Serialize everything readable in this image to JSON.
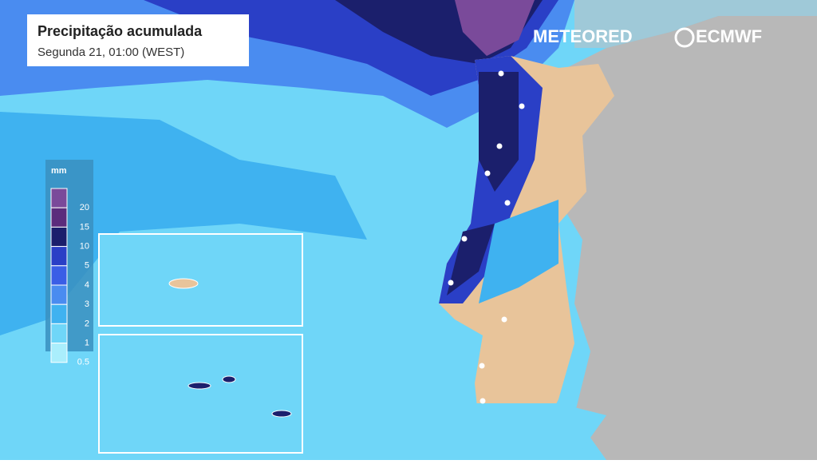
{
  "header": {
    "title": "Precipitação acumulada",
    "subtitle": "Segunda 21, 01:00 (WEST)"
  },
  "logos": {
    "brand": "METEORED",
    "model": "ECMWF"
  },
  "legend": {
    "unit": "mm",
    "steps": [
      {
        "value": 20,
        "color": "#7a4a9a"
      },
      {
        "value": 15,
        "color": "#5b2c7c"
      },
      {
        "value": 10,
        "color": "#1b1f6c"
      },
      {
        "value": 5,
        "color": "#2a3fc6"
      },
      {
        "value": 4,
        "color": "#3a5ee6"
      },
      {
        "value": 3,
        "color": "#4a8cf0"
      },
      {
        "value": 2,
        "color": "#3fb2f0"
      },
      {
        "value": 1,
        "color": "#6fd6f8"
      },
      {
        "value": 0.5,
        "color": "#aaeefc"
      }
    ]
  }
}
